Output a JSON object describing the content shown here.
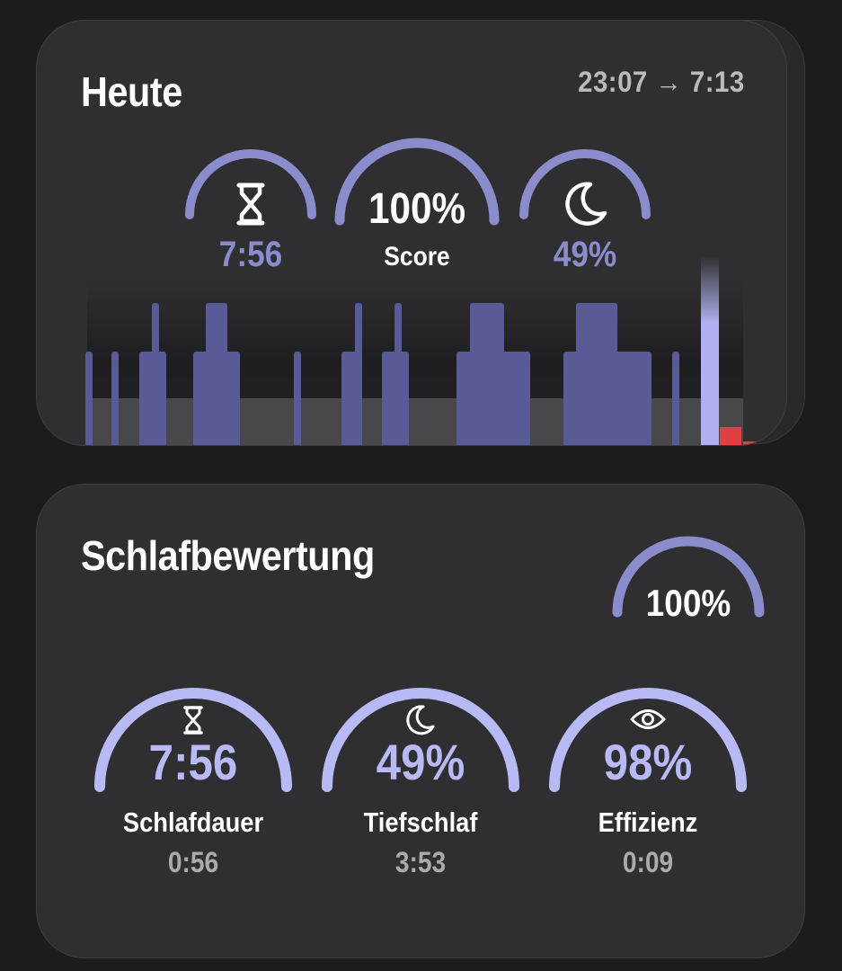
{
  "today": {
    "title": "Heute",
    "time_range": "23:07 → 7:13",
    "duration": "7:56",
    "score": "100%",
    "score_label": "Score",
    "deep_sleep": "49%",
    "gauge_color": "#8a8ccc"
  },
  "rating": {
    "title": "Schlafbewertung",
    "overall": "100%",
    "metrics": [
      {
        "icon": "hourglass-icon",
        "value": "7:56",
        "label": "Schlafdauer",
        "sub": "0:56"
      },
      {
        "icon": "moon-icon",
        "value": "49%",
        "label": "Tiefschlaf",
        "sub": "3:53"
      },
      {
        "icon": "eye-icon",
        "value": "98%",
        "label": "Effizienz",
        "sub": "0:09"
      }
    ],
    "gauge_color": "#b8baf5"
  },
  "colors": {
    "background": "#1c1b20",
    "card": "#2f2f31",
    "sleep_bar": "#585b96",
    "awake_marker": "#b0b2f0",
    "alert": "#e04040"
  }
}
